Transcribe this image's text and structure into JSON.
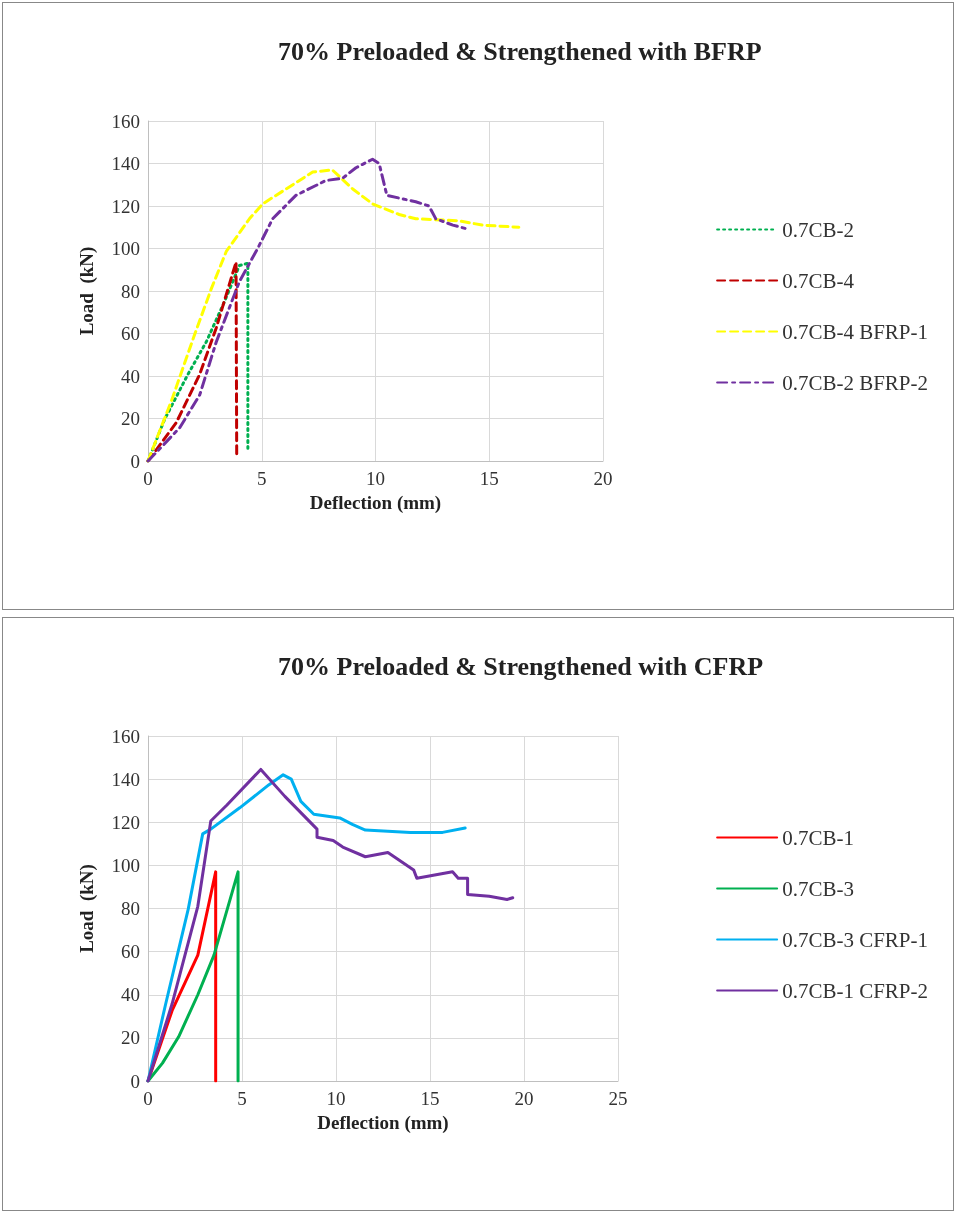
{
  "chart_data": [
    {
      "type": "line",
      "title": "70% Preloaded & Strengthened with BFRP",
      "xlabel": "Deflection (mm)",
      "ylabel": "Load  (kN)",
      "xlim": [
        0,
        20
      ],
      "xticks": [
        0,
        5,
        10,
        15,
        20
      ],
      "ylim": [
        0,
        160
      ],
      "yticks": [
        0,
        20,
        40,
        60,
        80,
        100,
        120,
        140,
        160
      ],
      "grid": true,
      "legend": "right",
      "marker": "none",
      "series": [
        {
          "name": "0.7CB-2",
          "color": "#00b050",
          "line_style": "dotted",
          "x": [
            0,
            0.73,
            1.75,
            2.56,
            3.36,
            4.02,
            4.39,
            4.39
          ],
          "values": [
            0,
            19.6,
            40.7,
            56,
            75,
            92,
            93,
            6
          ]
        },
        {
          "name": "0.7CB-4",
          "color": "#c00000",
          "line_style": "dashed",
          "x": [
            0,
            1.24,
            2.27,
            3.0,
            3.87,
            3.9
          ],
          "values": [
            0,
            18,
            40.7,
            62.6,
            93.6,
            2
          ]
        },
        {
          "name": "0.7CB-4 BFRP-1",
          "color": "#ffff00",
          "line_style": "dashed",
          "x": [
            0,
            1.02,
            2.05,
            2.78,
            3.44,
            4.46,
            5.04,
            6.07,
            7.24,
            8.1,
            9.0,
            9.87,
            11.04,
            11.77,
            13.67,
            14.7,
            16.3
          ],
          "values": [
            0,
            28,
            59.5,
            81,
            98.6,
            114,
            121,
            128,
            136,
            137,
            128,
            121,
            116,
            114,
            113,
            111,
            110
          ]
        },
        {
          "name": "0.7CB-2 BFRP-2",
          "color": "#7030a0",
          "line_style": "dashdot",
          "x": [
            0,
            1.39,
            2.27,
            3.0,
            4.02,
            4.82,
            5.48,
            6.5,
            7.82,
            8.55,
            9.14,
            9.87,
            10.16,
            10.5,
            11.77,
            12.35,
            12.65,
            13.4,
            14.1
          ],
          "values": [
            0,
            15.6,
            31,
            56,
            84.5,
            100,
            114,
            125,
            132,
            133,
            138,
            142,
            140,
            125,
            122,
            120,
            114,
            111,
            109
          ]
        }
      ]
    },
    {
      "type": "line",
      "title": "70% Preloaded & Strengthened with CFRP",
      "xlabel": "Deflection (mm)",
      "ylabel": "Load  (kN)",
      "xlim": [
        0,
        25
      ],
      "xticks": [
        0,
        5,
        10,
        15,
        20,
        25
      ],
      "ylim": [
        0,
        160
      ],
      "yticks": [
        0,
        20,
        40,
        60,
        80,
        100,
        120,
        140,
        160
      ],
      "grid": true,
      "legend": "right",
      "marker": "none",
      "series": [
        {
          "name": "0.7CB-1",
          "color": "#ff0000",
          "line_style": "solid",
          "x": [
            0,
            1.28,
            2.65,
            3.6,
            3.6
          ],
          "values": [
            0,
            32.6,
            58.4,
            97,
            0
          ]
        },
        {
          "name": "0.7CB-3",
          "color": "#00b050",
          "line_style": "solid",
          "x": [
            0,
            0.77,
            1.63,
            2.65,
            3.51,
            4.79,
            4.79
          ],
          "values": [
            0,
            8.3,
            20.5,
            40,
            58.4,
            97,
            0
          ]
        },
        {
          "name": "0.7CB-3 CFRP-1",
          "color": "#00b0f0",
          "line_style": "solid",
          "x": [
            0,
            0.94,
            2.14,
            2.91,
            3.34,
            4.88,
            6.42,
            7.19,
            7.62,
            8.13,
            8.82,
            10.2,
            10.87,
            11.56,
            13.96,
            15.67,
            16.87
          ],
          "values": [
            0,
            35.7,
            79.7,
            114.6,
            116.8,
            126.7,
            137.3,
            142,
            140,
            129.7,
            123.7,
            122,
            119,
            116.4,
            115.3,
            115.3,
            117.3
          ]
        },
        {
          "name": "0.7CB-1 CFRP-2",
          "color": "#7030a0",
          "line_style": "solid",
          "x": [
            0,
            1.28,
            2.65,
            3.34,
            4.2,
            6.0,
            7.28,
            8.99,
            8.99,
            9.85,
            10.36,
            11.56,
            12.76,
            14.13,
            14.3,
            16.2,
            16.5,
            17.0,
            17.0,
            18.15,
            19.1,
            19.4
          ],
          "values": [
            0,
            35.7,
            81,
            120.6,
            128,
            144.5,
            132,
            116.8,
            113,
            111.5,
            108.5,
            104,
            106,
            97.9,
            94,
            97,
            94,
            94,
            86.5,
            85.7,
            84.2,
            85
          ]
        }
      ]
    }
  ]
}
